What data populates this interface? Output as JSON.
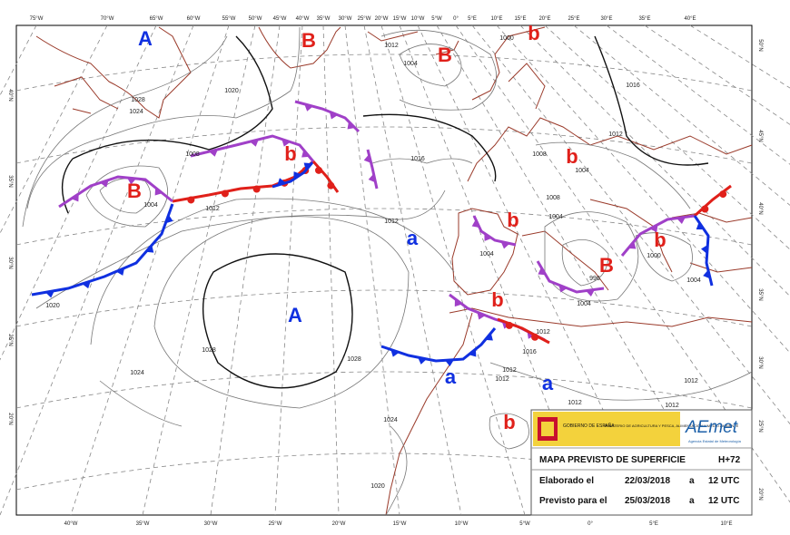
{
  "top_axis": [
    "75°W",
    "70°W",
    "65°W",
    "60°W",
    "55°W",
    "50°W",
    "45°W",
    "40°W",
    "35°W",
    "30°W",
    "25°W",
    "20°W",
    "15°W",
    "10°W",
    "5°W",
    "0°",
    "5°E",
    "10°E",
    "15°E",
    "20°E",
    "25°E",
    "30°E",
    "35°E",
    "40°E"
  ],
  "bottom_axis": [
    "40°W",
    "35°W",
    "30°W",
    "25°W",
    "20°W",
    "15°W",
    "10°W",
    "5°W",
    "0°",
    "5°E",
    "10°E"
  ],
  "left_axis": [
    "40°N",
    "35°N",
    "30°N",
    "25°N",
    "20°N"
  ],
  "right_axis": [
    "50°N",
    "45°N",
    "40°N",
    "35°N",
    "30°N",
    "25°N",
    "20°N"
  ],
  "centers": [
    "A",
    "B",
    "B",
    "b",
    "b",
    "B",
    "b",
    "b",
    "b",
    "B",
    "b",
    "a",
    "A",
    "b",
    "a",
    "a"
  ],
  "isobars": [
    "1028",
    "1024",
    "1020",
    "1008",
    "1004",
    "1012",
    "1016",
    "1012",
    "1008",
    "1004",
    "1008",
    "1004",
    "1016",
    "1012",
    "1000",
    "1012",
    "1004",
    "996",
    "1004",
    "1000",
    "1012",
    "1016",
    "1012",
    "1012",
    "1012",
    "1012",
    "1012",
    "1028",
    "1028",
    "1024",
    "1024",
    "1020",
    "1020",
    "1004",
    "1004"
  ],
  "info": {
    "gov": "GOBIERNO DE ESPAÑA",
    "ministry": "MINISTERIO DE AGRICULTURA Y PESCA, ALIMENTACIÓN Y MEDIO AMBIENTE",
    "agency": "AEmet",
    "agency_full": "Agencia Estatal de Meteorología",
    "title": "MAPA PREVISTO DE SUPERFICIE",
    "lead": "H+72",
    "made_label": "Elaborado el",
    "made_date": "22/03/2018",
    "made_at": "a",
    "made_time": "12 UTC",
    "valid_label": "Previsto para el",
    "valid_date": "25/03/2018",
    "valid_at": "a",
    "valid_time": "12 UTC"
  }
}
